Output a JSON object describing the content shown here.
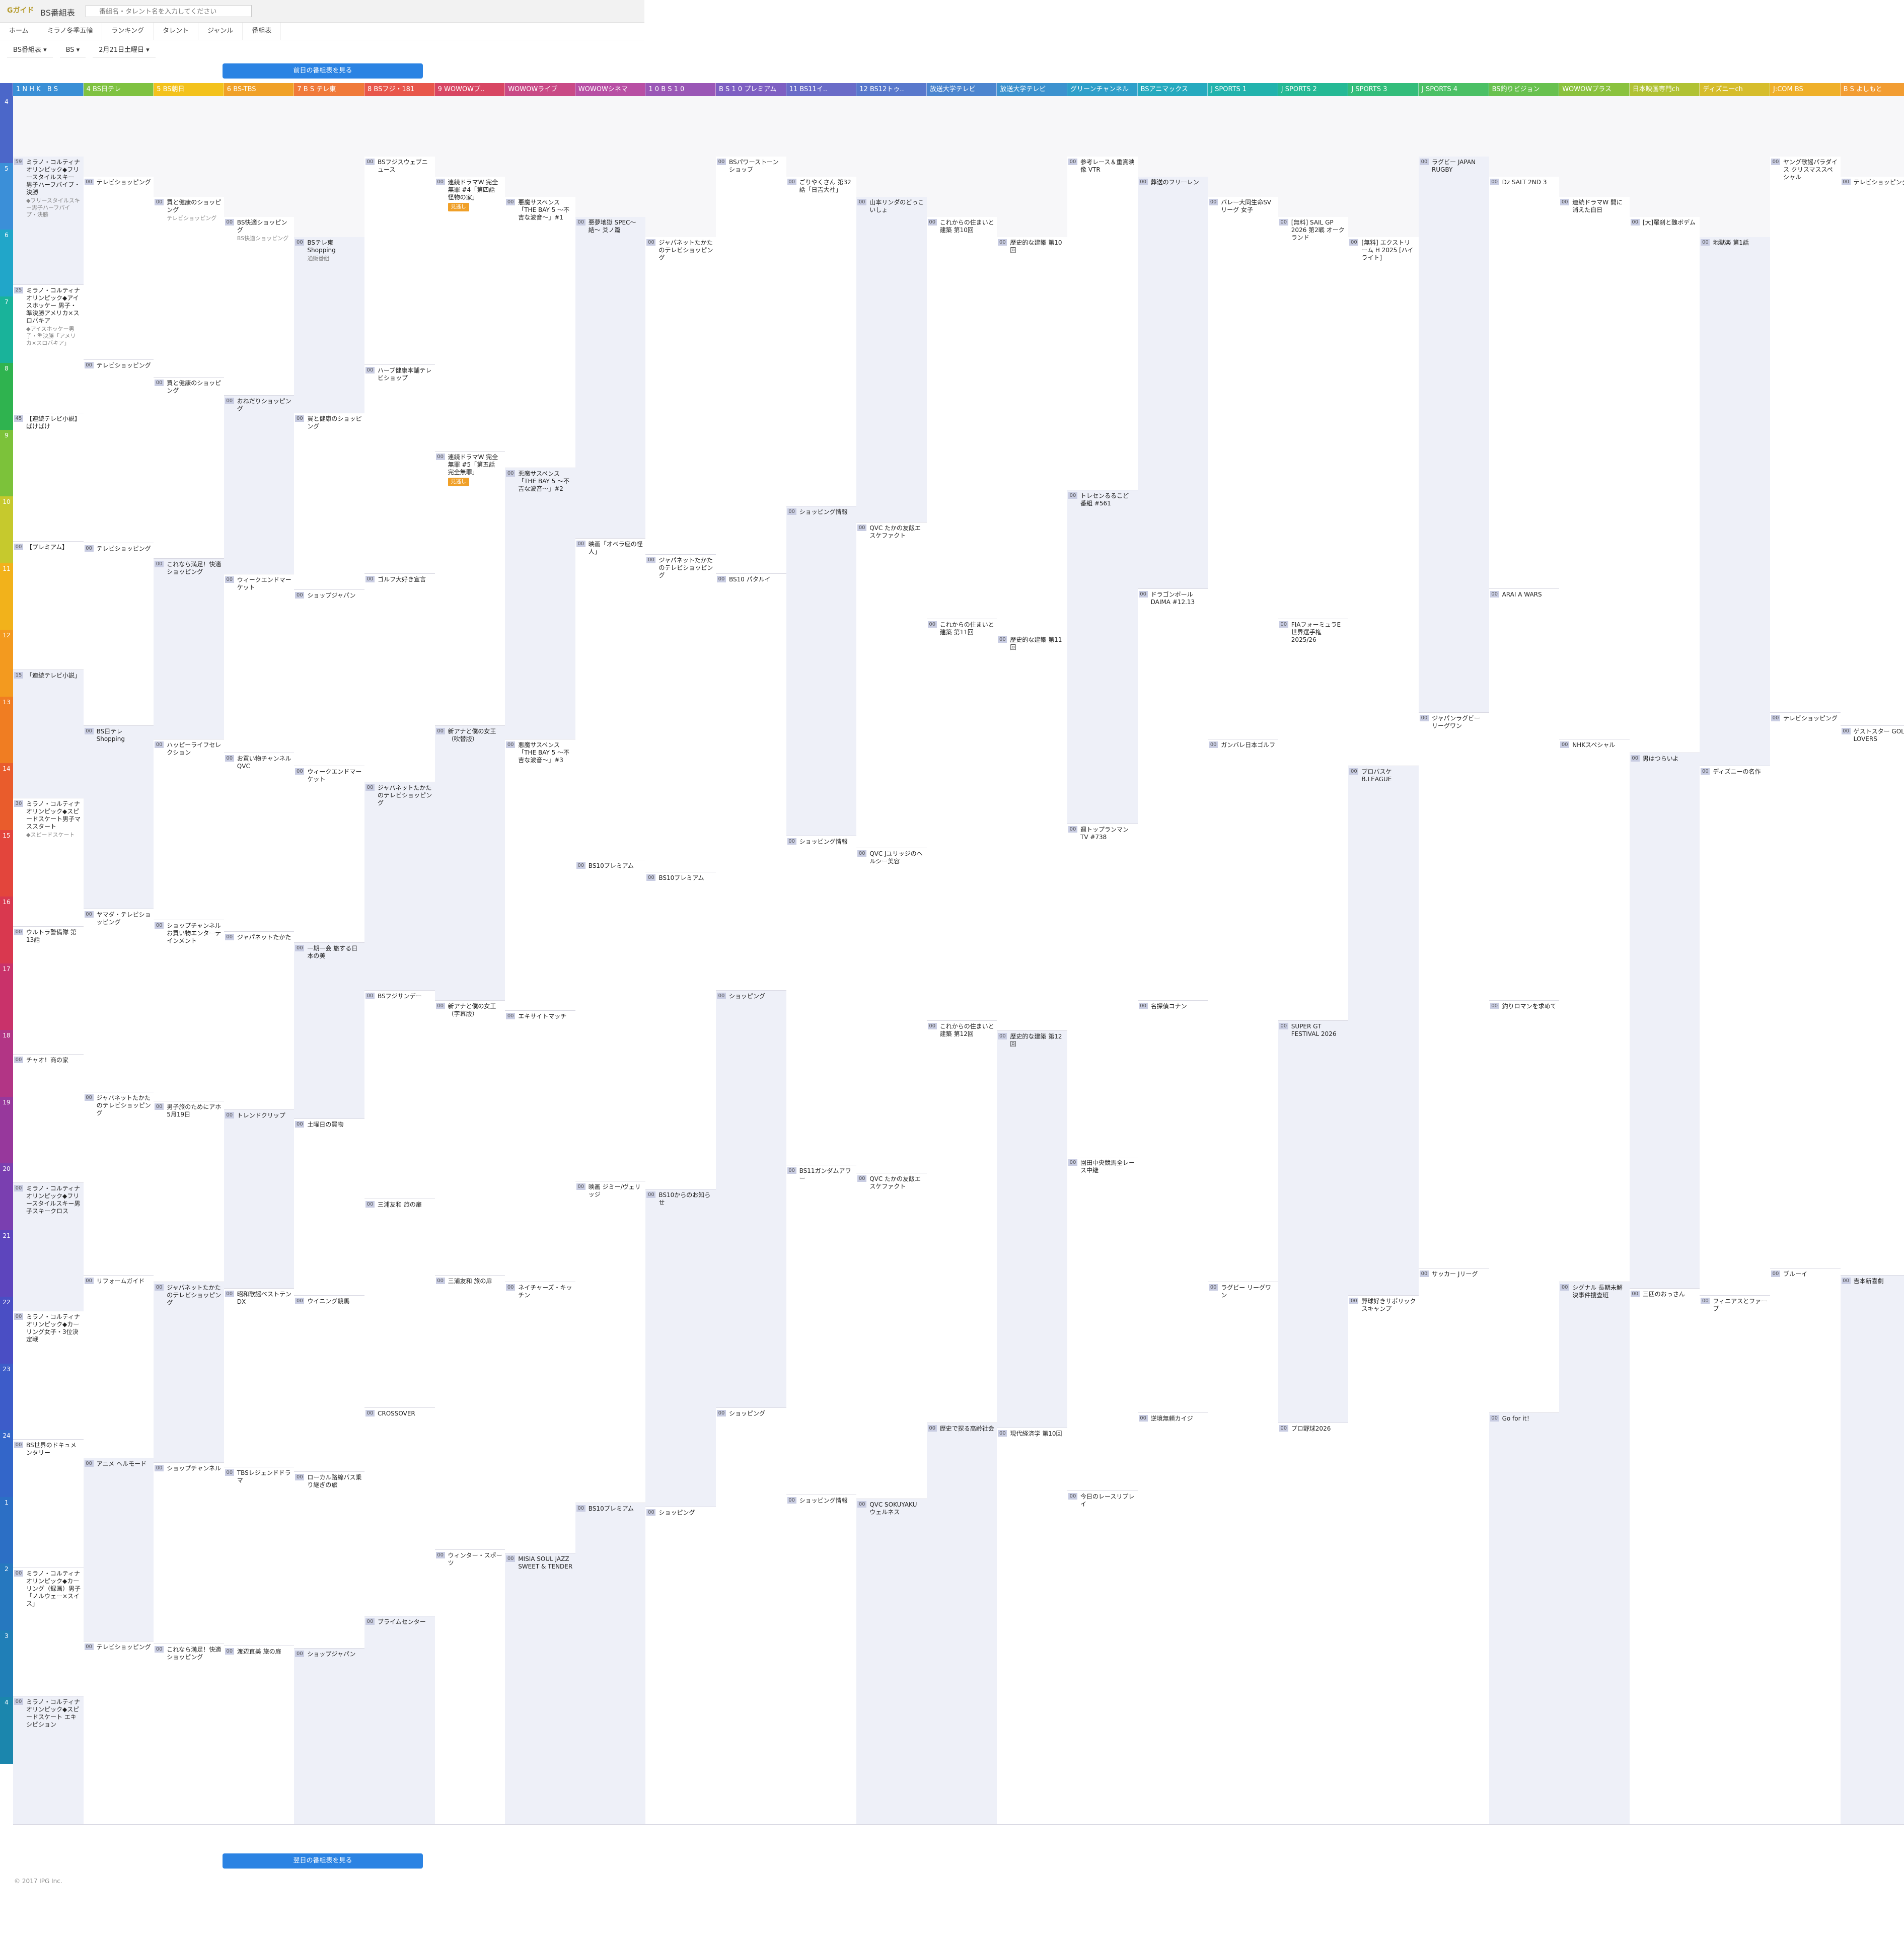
{
  "header": {
    "logo": "Gガイド",
    "title": "BS番組表",
    "search_placeholder": "番組名・タレント名を入力してください"
  },
  "nav": [
    {
      "label": "ホーム"
    },
    {
      "label": "ミラノ冬季五輪"
    },
    {
      "label": "ランキング"
    },
    {
      "label": "タレント"
    },
    {
      "label": "ジャンル"
    },
    {
      "label": "番組表"
    }
  ],
  "filters": [
    {
      "label": "BS番組表 ▾"
    },
    {
      "label": "BS ▾"
    },
    {
      "label": "2月21日土曜日 ▾"
    }
  ],
  "buttons": {
    "prev_day": "前日の番組表を見る",
    "next_day": "翌日の番組表を見る"
  },
  "hours": [
    "4",
    "5",
    "6",
    "7",
    "8",
    "9",
    "10",
    "11",
    "12",
    "13",
    "14",
    "15",
    "16",
    "17",
    "18",
    "19",
    "20",
    "21",
    "22",
    "23",
    "24",
    "1",
    "2",
    "3",
    "4"
  ],
  "hour_colors": [
    "#4b67c9",
    "#3b8fd8",
    "#21a6c9",
    "#19b39a",
    "#2fb34f",
    "#7cc23a",
    "#c6c92d",
    "#f2b21b",
    "#f39a1f",
    "#f07d22",
    "#e95c2c",
    "#e3453c",
    "#d9384f",
    "#c9326a",
    "#b23585",
    "#97389c",
    "#7a3fb0",
    "#5d45bd",
    "#4a4ec4",
    "#3d5cc9",
    "#3366c9",
    "#2c6fc5",
    "#2678bf",
    "#207fb7",
    "#1b86ad"
  ],
  "channels": [
    {
      "name": "1 N H K　B S",
      "color": "#3a8fd6"
    },
    {
      "name": "4 BS日テレ",
      "color": "#7fc241"
    },
    {
      "name": "5 BS朝日",
      "color": "#f3c21c"
    },
    {
      "name": "6 BS-TBS",
      "color": "#f0a128"
    },
    {
      "name": "7 B S テレ東",
      "color": "#f07a3a"
    },
    {
      "name": "8 BSフジ・181",
      "color": "#e8574b"
    },
    {
      "name": "9 WOWOWプ..",
      "color": "#d84663"
    },
    {
      "name": "WOWOWライブ",
      "color": "#c94a86"
    },
    {
      "name": "WOWOWシネマ",
      "color": "#b84fa4"
    },
    {
      "name": "1 0 B S 1 0",
      "color": "#9a57b6"
    },
    {
      "name": "B S 1 0 プレミアム",
      "color": "#7e5fc2"
    },
    {
      "name": "11 BS11イ..",
      "color": "#6a6cc8"
    },
    {
      "name": "12 BS12トゥ..",
      "color": "#5978cc"
    },
    {
      "name": "放送大学テレビ",
      "color": "#4c85cf"
    },
    {
      "name": "放送大学テレビ",
      "color": "#3c92cf"
    },
    {
      "name": "グリーンチャンネル",
      "color": "#2f9fca"
    },
    {
      "name": "BSアニマックス",
      "color": "#26aabf"
    },
    {
      "name": "J SPORTS 1",
      "color": "#22b3ad"
    },
    {
      "name": "J SPORTS 2",
      "color": "#25b995"
    },
    {
      "name": "J SPORTS 3",
      "color": "#33bd7b"
    },
    {
      "name": "J SPORTS 4",
      "color": "#4bc065"
    },
    {
      "name": "BS釣りビジョン",
      "color": "#68c14f"
    },
    {
      "name": "WOWOWプラス",
      "color": "#8ac23e"
    },
    {
      "name": "日本映画専門ch",
      "color": "#b0c234"
    },
    {
      "name": "ディズニーch",
      "color": "#d6bd2c"
    },
    {
      "name": "J:COM BS",
      "color": "#efb02a"
    },
    {
      "name": "B S よしもと",
      "color": "#f29d33"
    }
  ],
  "programs": [
    [
      {
        "m": "59",
        "t": "ミラノ・コルティナオリンピック◆フリースタイルスキー 男子ハーフパイプ・決勝",
        "d": "◆フリースタイルスキー男子ハーフパイプ・決勝"
      },
      {
        "m": "25",
        "t": "ミラノ・コルティナオリンピック◆アイスホッケー 男子・準決勝アメリカ×スロバキア",
        "d": "◆アイスホッケー男子・準決勝「アメリカ×スロバキア」"
      },
      {
        "m": "45",
        "t": "【連続テレビ小説】ばけばけ",
        "d": ""
      },
      {
        "m": "00",
        "t": "【プレミアム】",
        "d": ""
      },
      {
        "m": "15",
        "t": "「連続テレビ小説」",
        "d": ""
      },
      {
        "m": "30",
        "t": "ミラノ・コルティナオリンピック◆スピードスケート男子マススタート",
        "d": "◆スピードスケート"
      },
      {
        "m": "00",
        "t": "ウルトラ警備隊 第13話",
        "d": ""
      },
      {
        "m": "00",
        "t": "チャオ！商の家",
        "d": ""
      },
      {
        "m": "00",
        "t": "ミラノ・コルティナオリンピック◆フリースタイルスキー男子スキークロス",
        "d": ""
      },
      {
        "m": "00",
        "t": "ミラノ・コルティナオリンピック◆カーリング女子・3位決定戦",
        "d": ""
      },
      {
        "m": "00",
        "t": "BS世界のドキュメンタリー",
        "d": ""
      },
      {
        "m": "00",
        "t": "ミラノ・コルティナオリンピック◆カーリング（録画）男子「ノルウェー×スイス」",
        "d": ""
      },
      {
        "m": "00",
        "t": "ミラノ・コルティナオリンピック◆スピードスケート エキシビション",
        "d": ""
      }
    ],
    [
      {
        "m": "00",
        "t": "テレビショッピング",
        "d": ""
      },
      {
        "m": "00",
        "t": "テレビショッピング",
        "d": ""
      },
      {
        "m": "00",
        "t": "テレビショッピング",
        "d": ""
      },
      {
        "m": "00",
        "t": "BS日テレ Shopping",
        "d": ""
      },
      {
        "m": "00",
        "t": "ヤマダ・テレビショッピング",
        "d": ""
      },
      {
        "m": "00",
        "t": "ジャパネットたかたのテレビショッピング",
        "d": ""
      },
      {
        "m": "00",
        "t": "リフォームガイド",
        "d": ""
      },
      {
        "m": "00",
        "t": "アニメ ヘルモード",
        "d": ""
      },
      {
        "m": "00",
        "t": "テレビショッピング",
        "d": ""
      }
    ],
    [
      {
        "m": "00",
        "t": "買と健康のショッピング",
        "d": "テレビショッピング"
      },
      {
        "m": "00",
        "t": "買と健康のショッピング",
        "d": ""
      },
      {
        "m": "00",
        "t": "これなら満足！快適ショッピング",
        "d": ""
      },
      {
        "m": "00",
        "t": "ハッピーライフセレクション",
        "d": ""
      },
      {
        "m": "00",
        "t": "ショップチャンネル お買い物エンターテインメント",
        "d": ""
      },
      {
        "m": "00",
        "t": "男子旅のためにアホ 5月19日",
        "d": ""
      },
      {
        "m": "00",
        "t": "ジャパネットたかたのテレビショッピング",
        "d": ""
      },
      {
        "m": "00",
        "t": "ショップチャンネル",
        "d": ""
      },
      {
        "m": "00",
        "t": "これなら満足！快適ショッピング",
        "d": ""
      }
    ],
    [
      {
        "m": "00",
        "t": "BS快適ショッピング",
        "d": "BS快適ショッピング"
      },
      {
        "m": "00",
        "t": "おねだりショッピング",
        "d": ""
      },
      {
        "m": "00",
        "t": "ウィークエンドマーケット",
        "d": ""
      },
      {
        "m": "00",
        "t": "お買い物チャンネル QVC",
        "d": ""
      },
      {
        "m": "00",
        "t": "ジャパネットたかた",
        "d": ""
      },
      {
        "m": "00",
        "t": "トレンドクリップ",
        "d": ""
      },
      {
        "m": "00",
        "t": "昭和歌謡ベストテンDX",
        "d": ""
      },
      {
        "m": "00",
        "t": "TBSレジェンドドラマ",
        "d": ""
      },
      {
        "m": "00",
        "t": "渡辺直美 旅の扉",
        "d": ""
      }
    ],
    [
      {
        "m": "00",
        "t": "BSテレ東 Shopping",
        "d": "通販番組"
      },
      {
        "m": "00",
        "t": "買と健康のショッピング",
        "d": ""
      },
      {
        "m": "00",
        "t": "ショップジャパン",
        "d": ""
      },
      {
        "m": "00",
        "t": "ウィークエンドマーケット",
        "d": ""
      },
      {
        "m": "00",
        "t": "一期一会 旅する日本の美",
        "d": ""
      },
      {
        "m": "00",
        "t": "土曜日の買物",
        "d": ""
      },
      {
        "m": "00",
        "t": "ウイニング競馬",
        "d": ""
      },
      {
        "m": "00",
        "t": "ローカル路線バス乗り継ぎの旅",
        "d": ""
      },
      {
        "m": "00",
        "t": "ショップジャパン",
        "d": ""
      }
    ],
    [
      {
        "m": "00",
        "t": "BSフジスウェブニュース",
        "d": ""
      },
      {
        "m": "00",
        "t": "ハーブ健康本舗テレビショップ",
        "d": ""
      },
      {
        "m": "00",
        "t": "ゴルフ大好き宣言",
        "d": ""
      },
      {
        "m": "00",
        "t": "ジャパネットたかたのテレビショッピング",
        "d": ""
      },
      {
        "m": "00",
        "t": "BSフジサンデー",
        "d": ""
      },
      {
        "m": "00",
        "t": "三浦友和 旅の扉",
        "d": ""
      },
      {
        "m": "00",
        "t": "CROSSOVER",
        "d": ""
      },
      {
        "m": "00",
        "t": "ブライムセンター",
        "d": ""
      }
    ],
    [
      {
        "m": "00",
        "t": "連続ドラマW 完全無罪 #4「第四話 怪物の家」",
        "d": "",
        "badge": "見逃し"
      },
      {
        "m": "00",
        "t": "連続ドラマW 完全無罪 #5「第五話 完全無罪」",
        "d": "",
        "badge": "見逃し"
      },
      {
        "m": "00",
        "t": "新アナと僕の女王（吹替版）",
        "d": ""
      },
      {
        "m": "00",
        "t": "新アナと僕の女王（字幕版）",
        "d": ""
      },
      {
        "m": "00",
        "t": "三浦友和 旅の扉",
        "d": ""
      },
      {
        "m": "00",
        "t": "ウィンター・スポーツ",
        "d": ""
      }
    ],
    [
      {
        "m": "00",
        "t": "悪魔サスペンス「THE BAY 5 〜不吉な波音〜」#1",
        "d": ""
      },
      {
        "m": "00",
        "t": "悪魔サスペンス「THE BAY 5 〜不吉な波音〜」#2",
        "d": ""
      },
      {
        "m": "00",
        "t": "悪魔サスペンス「THE BAY 5 〜不吉な波音〜」#3",
        "d": ""
      },
      {
        "m": "00",
        "t": "エキサイトマッチ",
        "d": ""
      },
      {
        "m": "00",
        "t": "ネイチャーズ・キッチン",
        "d": ""
      },
      {
        "m": "00",
        "t": "MISIA SOUL JAZZ SWEET & TENDER",
        "d": ""
      }
    ],
    [
      {
        "m": "00",
        "t": "悪夢地獄 SPEC〜結〜 爻ノ篇",
        "d": ""
      },
      {
        "m": "00",
        "t": "映画「オペラ座の怪人」",
        "d": ""
      },
      {
        "m": "00",
        "t": "BS10プレミアム",
        "d": ""
      },
      {
        "m": "00",
        "t": "映画 ジミー/ヴェリッジ",
        "d": ""
      },
      {
        "m": "00",
        "t": "BS10プレミアム",
        "d": ""
      }
    ],
    [
      {
        "m": "00",
        "t": "ジャパネットたかたのテレビショッピング",
        "d": ""
      },
      {
        "m": "00",
        "t": "ジャパネットたかたのテレビショッピング",
        "d": ""
      },
      {
        "m": "00",
        "t": "BS10プレミアム",
        "d": ""
      },
      {
        "m": "00",
        "t": "BS10からのお知らせ",
        "d": ""
      },
      {
        "m": "00",
        "t": "ショッピング",
        "d": ""
      }
    ],
    [
      {
        "m": "00",
        "t": "BSパワーストーンショップ",
        "d": ""
      },
      {
        "m": "00",
        "t": "BS10 パタルイ",
        "d": ""
      },
      {
        "m": "00",
        "t": "ショッピング",
        "d": ""
      },
      {
        "m": "00",
        "t": "ショッピング",
        "d": ""
      }
    ],
    [
      {
        "m": "00",
        "t": "ごりやくさん 第32話「日吉大社」",
        "d": ""
      },
      {
        "m": "00",
        "t": "ショッピング情報",
        "d": ""
      },
      {
        "m": "00",
        "t": "ショッピング情報",
        "d": ""
      },
      {
        "m": "00",
        "t": "BS11ガンダムアワー",
        "d": ""
      },
      {
        "m": "00",
        "t": "ショッピング情報",
        "d": ""
      }
    ],
    [
      {
        "m": "00",
        "t": "山本リンダのどっこいしょ",
        "d": ""
      },
      {
        "m": "00",
        "t": "QVC たかの友飯エスケファクト",
        "d": ""
      },
      {
        "m": "00",
        "t": "QVC Jユリッジのヘルシー美容",
        "d": ""
      },
      {
        "m": "00",
        "t": "QVC たかの友飯エスケファクト",
        "d": ""
      },
      {
        "m": "00",
        "t": "QVC SOKUYAKU ウェルネス",
        "d": ""
      }
    ],
    [
      {
        "m": "00",
        "t": "これからの住まいと建築 第10回",
        "d": ""
      },
      {
        "m": "00",
        "t": "これからの住まいと建築 第11回",
        "d": ""
      },
      {
        "m": "00",
        "t": "これからの住まいと建築 第12回",
        "d": ""
      },
      {
        "m": "00",
        "t": "歴史で探る高齢社会",
        "d": ""
      }
    ],
    [
      {
        "m": "00",
        "t": "歴史的な建築 第10回",
        "d": ""
      },
      {
        "m": "00",
        "t": "歴史的な建築 第11回",
        "d": ""
      },
      {
        "m": "00",
        "t": "歴史的な建築 第12回",
        "d": ""
      },
      {
        "m": "00",
        "t": "現代経済学 第10回",
        "d": ""
      }
    ],
    [
      {
        "m": "00",
        "t": "参考レース＆重賞映像 VTR",
        "d": ""
      },
      {
        "m": "00",
        "t": "トレセンるるこど 番組 #561",
        "d": ""
      },
      {
        "m": "00",
        "t": "週トップランマン TV #738",
        "d": ""
      },
      {
        "m": "00",
        "t": "園田中央競馬全レース中継",
        "d": ""
      },
      {
        "m": "00",
        "t": "今日のレースリプレイ",
        "d": ""
      }
    ],
    [
      {
        "m": "00",
        "t": "葬送のフリーレン",
        "d": ""
      },
      {
        "m": "00",
        "t": "ドラゴンボール DAIMA #12.13",
        "d": ""
      },
      {
        "m": "00",
        "t": "名探偵コナン",
        "d": ""
      },
      {
        "m": "00",
        "t": "逆境無頼カイジ",
        "d": ""
      }
    ],
    [
      {
        "m": "00",
        "t": "バレー大同生命SVリーグ 女子",
        "d": ""
      },
      {
        "m": "00",
        "t": "ガンバレ日本ゴルフ",
        "d": ""
      },
      {
        "m": "00",
        "t": "ラグビー リーグワン",
        "d": ""
      }
    ],
    [
      {
        "m": "00",
        "t": "[無料] SAIL GP 2026 第2戦 オークランド",
        "d": ""
      },
      {
        "m": "00",
        "t": "FIAフォーミュラE世界選手権 2025/26",
        "d": ""
      },
      {
        "m": "00",
        "t": "SUPER GT FESTIVAL 2026",
        "d": ""
      },
      {
        "m": "00",
        "t": "プロ野球2026",
        "d": ""
      }
    ],
    [
      {
        "m": "00",
        "t": "[無料] エクストリーム H 2025 [ハイライト]",
        "d": ""
      },
      {
        "m": "00",
        "t": "プロバスケ B.LEAGUE",
        "d": ""
      },
      {
        "m": "00",
        "t": "野球好きサポリックスキャンプ",
        "d": ""
      }
    ],
    [
      {
        "m": "00",
        "t": "ラグビー JAPAN RUGBY",
        "d": ""
      },
      {
        "m": "00",
        "t": "ジャパンラグビー リーグワン",
        "d": ""
      },
      {
        "m": "00",
        "t": "サッカー Jリーグ",
        "d": ""
      }
    ],
    [
      {
        "m": "00",
        "t": "Dz SALT 2ND 3",
        "d": ""
      },
      {
        "m": "00",
        "t": "ARAI A WARS",
        "d": ""
      },
      {
        "m": "00",
        "t": "釣りロマンを求めて",
        "d": ""
      },
      {
        "m": "00",
        "t": "Go for it！",
        "d": ""
      }
    ],
    [
      {
        "m": "00",
        "t": "連続ドラマW 開に消えた白日",
        "d": ""
      },
      {
        "m": "00",
        "t": "NHKスペシャル",
        "d": ""
      },
      {
        "m": "00",
        "t": "シグナル 長期未解決事件捜査班",
        "d": ""
      }
    ],
    [
      {
        "m": "00",
        "t": "[大]羅刹と醜ボデム",
        "d": ""
      },
      {
        "m": "00",
        "t": "男はつらいよ",
        "d": ""
      },
      {
        "m": "00",
        "t": "三匹のおっさん",
        "d": ""
      }
    ],
    [
      {
        "m": "00",
        "t": "地獄楽 第1話",
        "d": ""
      },
      {
        "m": "00",
        "t": "ディズニーの名作",
        "d": ""
      },
      {
        "m": "00",
        "t": "フィニアスとファーブ",
        "d": ""
      }
    ],
    [
      {
        "m": "00",
        "t": "ヤング歌謡パラダイス クリスマススペシャル",
        "d": ""
      },
      {
        "m": "00",
        "t": "テレビショッピング",
        "d": ""
      },
      {
        "m": "00",
        "t": "ブルーイ",
        "d": ""
      }
    ],
    [
      {
        "m": "00",
        "t": "テレビショッピング",
        "d": ""
      },
      {
        "m": "00",
        "t": "ゲストスター GOLF LOVERS",
        "d": ""
      },
      {
        "m": "00",
        "t": "吉本新喜劇",
        "d": ""
      }
    ]
  ],
  "footer": "© 2017 IPG Inc."
}
